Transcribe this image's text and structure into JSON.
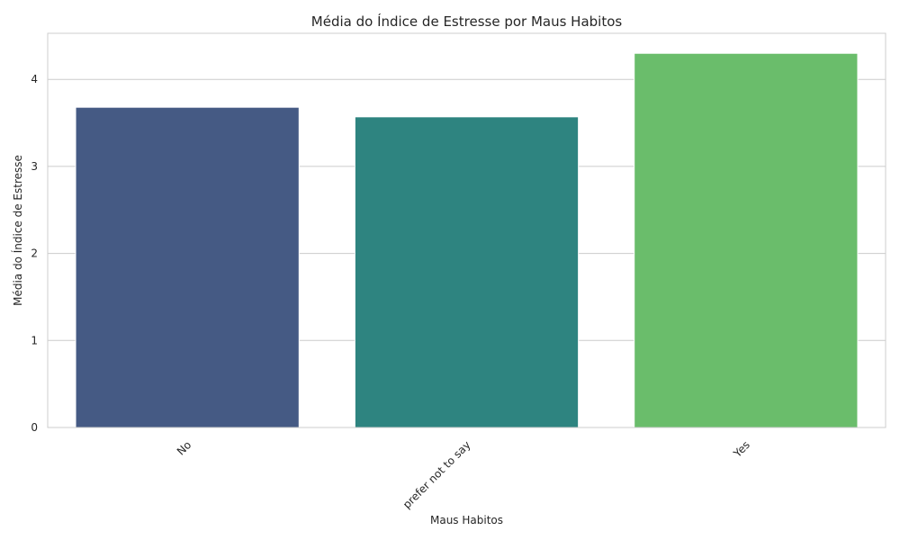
{
  "chart_data": {
    "type": "bar",
    "title": "Média do Índice de Estresse por Maus Habitos",
    "xlabel": "Maus Habitos",
    "ylabel": "Média do Índice de Estresse",
    "categories": [
      "No",
      "prefer not to say",
      "Yes"
    ],
    "values": [
      3.68,
      3.57,
      4.3
    ],
    "colors": [
      "#455a84",
      "#2e8480",
      "#6abd6b"
    ],
    "yticks": [
      0,
      1,
      2,
      3,
      4
    ],
    "ylim": [
      0,
      4.53
    ],
    "grid": "y",
    "legend": "none"
  }
}
